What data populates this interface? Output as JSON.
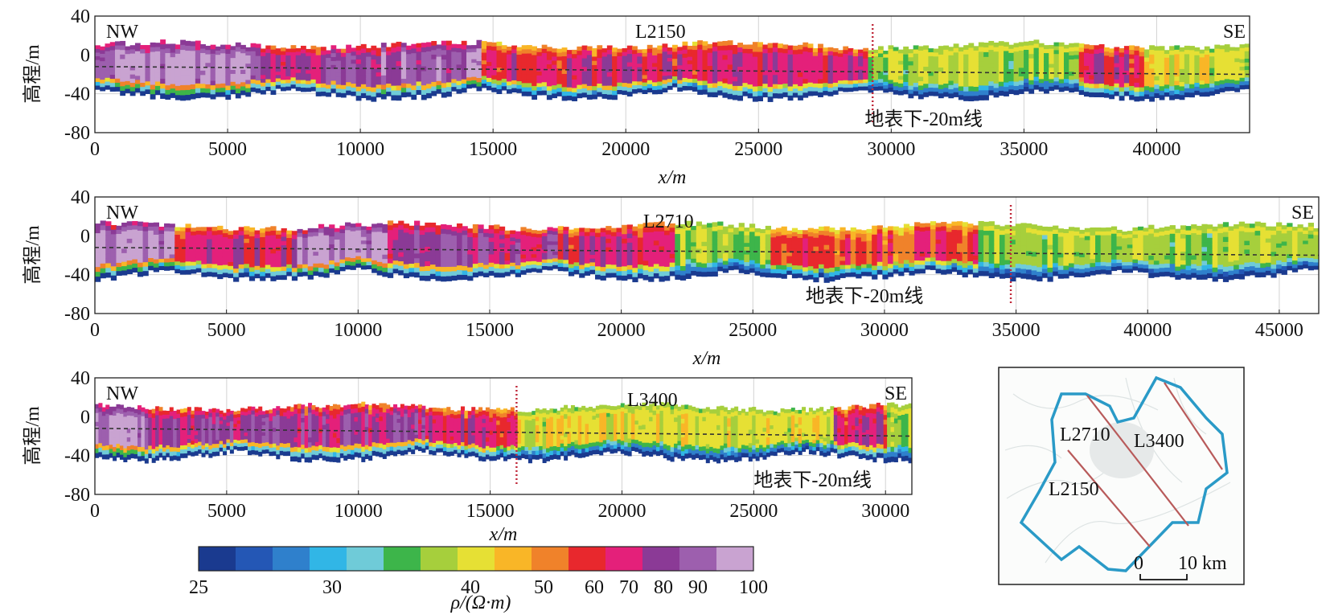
{
  "chart_data": [
    {
      "type": "heatmap",
      "profile_label": "L2150",
      "ends": {
        "left": "NW",
        "right": "SE"
      },
      "xlabel": "x/m",
      "ylabel": "高程/m",
      "xlim": [
        0,
        43500
      ],
      "ylim": [
        -80,
        40
      ],
      "xticks": [
        "0",
        "5000",
        "10000",
        "15000",
        "20000",
        "25000",
        "30000",
        "35000",
        "40000"
      ],
      "yticks": [
        "40",
        "0",
        "-40",
        "-80"
      ],
      "depth_line_label": "地表下-20m线",
      "depth_line_label_x": 29000,
      "divider_x": 29300,
      "surface_y_start": -12,
      "surface_y_end": -20,
      "zones": [
        {
          "from": 0,
          "to": 6000,
          "rho": 100
        },
        {
          "from": 6000,
          "to": 9000,
          "rho": 70
        },
        {
          "from": 9000,
          "to": 14500,
          "rho": 90
        },
        {
          "from": 14500,
          "to": 29000,
          "rho": 62
        },
        {
          "from": 29000,
          "to": 37000,
          "rho": 38
        },
        {
          "from": 37000,
          "to": 39500,
          "rho": 60
        },
        {
          "from": 39500,
          "to": 43500,
          "rho": 40
        }
      ]
    },
    {
      "type": "heatmap",
      "profile_label": "L2710",
      "ends": {
        "left": "NW",
        "right": "SE"
      },
      "xlabel": "x/m",
      "ylabel": "高程/m",
      "xlim": [
        0,
        46500
      ],
      "ylim": [
        -80,
        40
      ],
      "xticks": [
        "0",
        "5000",
        "10000",
        "15000",
        "20000",
        "25000",
        "30000",
        "35000",
        "40000",
        "45000"
      ],
      "yticks": [
        "40",
        "0",
        "-40",
        "-80"
      ],
      "depth_line_label": "地表下-20m线",
      "depth_line_label_x": 27000,
      "divider_x": 34800,
      "surface_y_start": -12,
      "surface_y_end": -20,
      "zones": [
        {
          "from": 0,
          "to": 3000,
          "rho": 100
        },
        {
          "from": 3000,
          "to": 7500,
          "rho": 62
        },
        {
          "from": 7500,
          "to": 11000,
          "rho": 100
        },
        {
          "from": 11000,
          "to": 17500,
          "rho": 70
        },
        {
          "from": 17500,
          "to": 22000,
          "rho": 60
        },
        {
          "from": 22000,
          "to": 25500,
          "rho": 38
        },
        {
          "from": 25500,
          "to": 33500,
          "rho": 55
        },
        {
          "from": 33500,
          "to": 46500,
          "rho": 38
        }
      ]
    },
    {
      "type": "heatmap",
      "profile_label": "L3400",
      "ends": {
        "left": "NW",
        "right": "SE"
      },
      "xlabel": "x/m",
      "ylabel": "高程/m",
      "xlim": [
        0,
        31000
      ],
      "ylim": [
        -80,
        40
      ],
      "xticks": [
        "0",
        "5000",
        "10000",
        "15000",
        "20000",
        "25000",
        "30000"
      ],
      "yticks": [
        "40",
        "0",
        "-40",
        "-80"
      ],
      "depth_line_label": "地表下-20m线",
      "depth_line_label_x": 25000,
      "divider_x": 16000,
      "surface_y_start": -12,
      "surface_y_end": -20,
      "zones": [
        {
          "from": 0,
          "to": 2000,
          "rho": 100
        },
        {
          "from": 2000,
          "to": 12500,
          "rho": 75
        },
        {
          "from": 12500,
          "to": 16000,
          "rho": 60
        },
        {
          "from": 16000,
          "to": 28000,
          "rho": 40
        },
        {
          "from": 28000,
          "to": 30000,
          "rho": 65
        },
        {
          "from": 30000,
          "to": 31000,
          "rho": 38
        }
      ]
    }
  ],
  "colorbar": {
    "colors": [
      "#1a3a8f",
      "#2457b5",
      "#2f80cc",
      "#31b6e6",
      "#6fcbd8",
      "#3db54a",
      "#a6cf3c",
      "#e6e034",
      "#f9b627",
      "#f0822a",
      "#e8282d",
      "#e4207a",
      "#8b3a96",
      "#9d5fae",
      "#c9a3d1"
    ],
    "ticks": [
      "25",
      "30",
      "40",
      "50",
      "60",
      "70",
      "80",
      "90",
      "100"
    ],
    "tick_values": [
      25,
      30,
      40,
      50,
      60,
      70,
      80,
      90,
      100
    ],
    "label": "ρ/(Ω·m)"
  },
  "inset_map": {
    "labels": [
      "L2710",
      "L3400",
      "L2150"
    ],
    "scale_zero": "0",
    "scale_label": "10 km",
    "outline_color": "#2a9ac7",
    "line_color": "#b85a5a"
  }
}
